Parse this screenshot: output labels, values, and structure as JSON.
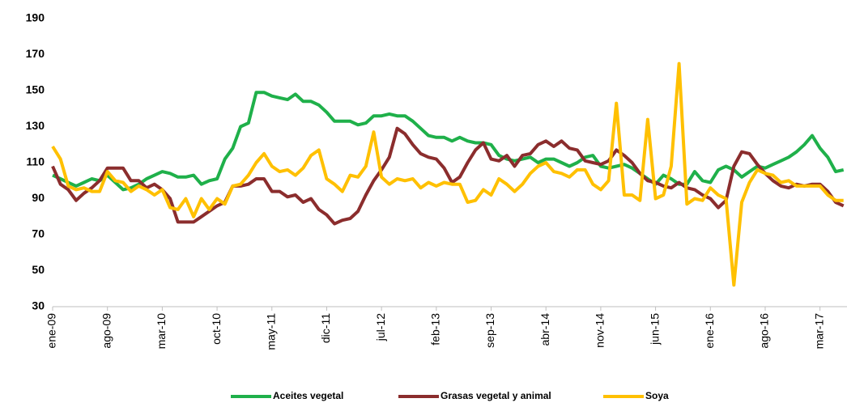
{
  "chart_data": {
    "type": "line",
    "categories": [
      "ene-09",
      null,
      null,
      null,
      null,
      null,
      null,
      "ago-09",
      null,
      null,
      null,
      null,
      null,
      null,
      "mar-10",
      null,
      null,
      null,
      null,
      null,
      null,
      "oct-10",
      null,
      null,
      null,
      null,
      null,
      null,
      "may-11",
      null,
      null,
      null,
      null,
      null,
      null,
      "dic-11",
      null,
      null,
      null,
      null,
      null,
      null,
      "jul-12",
      null,
      null,
      null,
      null,
      null,
      null,
      "feb-13",
      null,
      null,
      null,
      null,
      null,
      null,
      "sep-13",
      null,
      null,
      null,
      null,
      null,
      null,
      "abr-14",
      null,
      null,
      null,
      null,
      null,
      null,
      "nov-14",
      null,
      null,
      null,
      null,
      null,
      null,
      "jun-15",
      null,
      null,
      null,
      null,
      null,
      null,
      "ene-16",
      null,
      null,
      null,
      null,
      null,
      null,
      "ago-16",
      null,
      null,
      null,
      null,
      null,
      null,
      "mar-17",
      null,
      null,
      null
    ],
    "series": [
      {
        "name": "Aceites vegetal",
        "color": "#1fb04a",
        "values": [
          103,
          101,
          99,
          97,
          99,
          101,
          100,
          103,
          99,
          95,
          96,
          98,
          101,
          103,
          105,
          104,
          102,
          102,
          103,
          98,
          100,
          101,
          112,
          118,
          130,
          132,
          149,
          149,
          147,
          146,
          145,
          148,
          144,
          144,
          142,
          138,
          133,
          133,
          133,
          131,
          132,
          136,
          136,
          137,
          136,
          136,
          133,
          129,
          125,
          124,
          124,
          122,
          124,
          122,
          121,
          121,
          120,
          114,
          112,
          111,
          112,
          113,
          110,
          112,
          112,
          110,
          108,
          110,
          113,
          114,
          108,
          107,
          108,
          109,
          107,
          104,
          101,
          98,
          103,
          101,
          98,
          98,
          105,
          100,
          99,
          106,
          108,
          106,
          102,
          105,
          108,
          107,
          109,
          111,
          113,
          116,
          120,
          125,
          118,
          113,
          105,
          106
        ]
      },
      {
        "name": "Grasas vegetal y animal",
        "color": "#8b2d2d",
        "values": [
          108,
          98,
          95,
          89,
          93,
          96,
          100,
          107,
          107,
          107,
          100,
          100,
          96,
          98,
          95,
          90,
          77,
          77,
          77,
          80,
          83,
          86,
          88,
          97,
          97,
          98,
          101,
          101,
          94,
          94,
          91,
          92,
          88,
          90,
          84,
          81,
          76,
          78,
          79,
          83,
          92,
          100,
          106,
          113,
          129,
          126,
          120,
          115,
          113,
          112,
          107,
          99,
          102,
          110,
          117,
          121,
          112,
          111,
          114,
          108,
          114,
          115,
          120,
          122,
          119,
          122,
          118,
          117,
          111,
          110,
          109,
          111,
          117,
          114,
          110,
          104,
          100,
          99,
          97,
          96,
          99,
          96,
          95,
          92,
          90,
          85,
          89,
          108,
          116,
          115,
          109,
          104,
          100,
          97,
          96,
          98,
          97,
          98,
          98,
          94,
          88,
          86
        ]
      },
      {
        "name": "Soya",
        "color": "#ffc000",
        "values": [
          119,
          112,
          97,
          95,
          96,
          94,
          94,
          105,
          100,
          99,
          94,
          97,
          95,
          92,
          95,
          85,
          84,
          90,
          80,
          90,
          84,
          90,
          87,
          97,
          98,
          103,
          110,
          115,
          108,
          105,
          106,
          103,
          107,
          114,
          117,
          101,
          98,
          94,
          103,
          102,
          108,
          127,
          102,
          98,
          101,
          100,
          101,
          96,
          99,
          97,
          99,
          98,
          98,
          88,
          89,
          95,
          92,
          101,
          98,
          94,
          98,
          104,
          108,
          110,
          105,
          104,
          102,
          106,
          106,
          98,
          95,
          100,
          143,
          92,
          92,
          89,
          134,
          90,
          92,
          108,
          165,
          87,
          90,
          89,
          96,
          92,
          90,
          42,
          88,
          99,
          106,
          104,
          103,
          99,
          100,
          97,
          97,
          97,
          97,
          92,
          89,
          89
        ]
      }
    ],
    "ylim": [
      30,
      190
    ],
    "yticks": [
      30,
      50,
      70,
      90,
      110,
      130,
      150,
      170,
      190
    ],
    "grid": false,
    "legend": "bottom"
  }
}
